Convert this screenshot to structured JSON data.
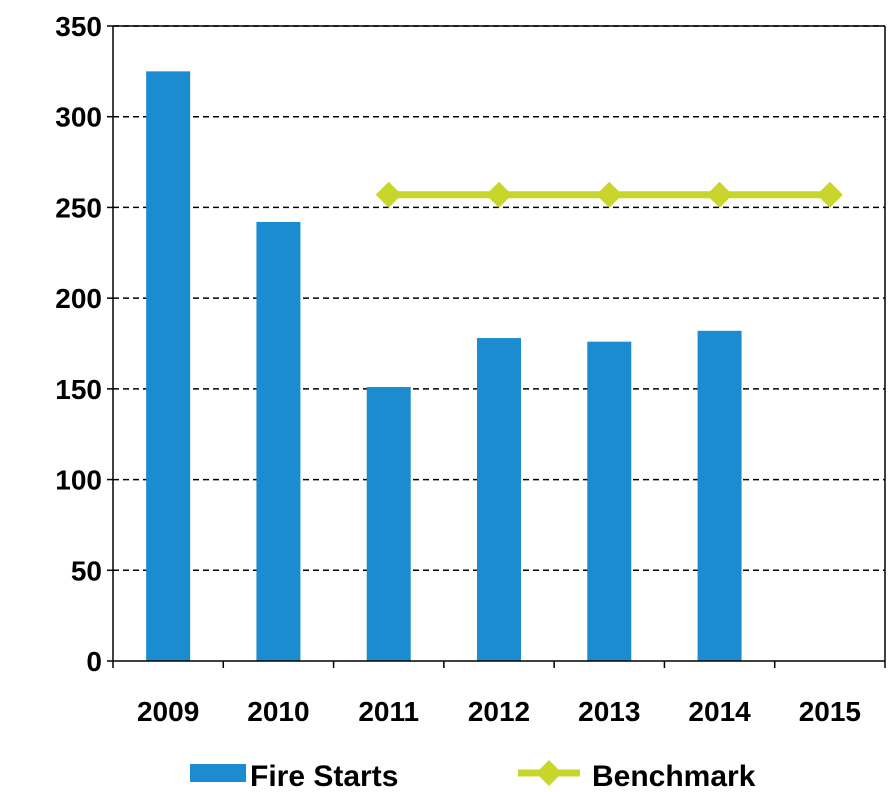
{
  "chart_data": {
    "type": "bar",
    "categories": [
      "2009",
      "2010",
      "2011",
      "2012",
      "2013",
      "2014",
      "2015"
    ],
    "series": [
      {
        "name": "Fire Starts",
        "type": "bar",
        "color": "#1b8ccf",
        "values": [
          325,
          242,
          151,
          178,
          176,
          182,
          null
        ]
      },
      {
        "name": "Benchmark",
        "type": "line",
        "marker": "diamond",
        "color": "#c8d62b",
        "values": [
          null,
          null,
          257,
          257,
          257,
          257,
          257
        ]
      }
    ],
    "ylim": [
      0,
      350
    ],
    "yticks": [
      0,
      50,
      100,
      150,
      200,
      250,
      300,
      350
    ],
    "grid": true,
    "legend": "bottom"
  }
}
